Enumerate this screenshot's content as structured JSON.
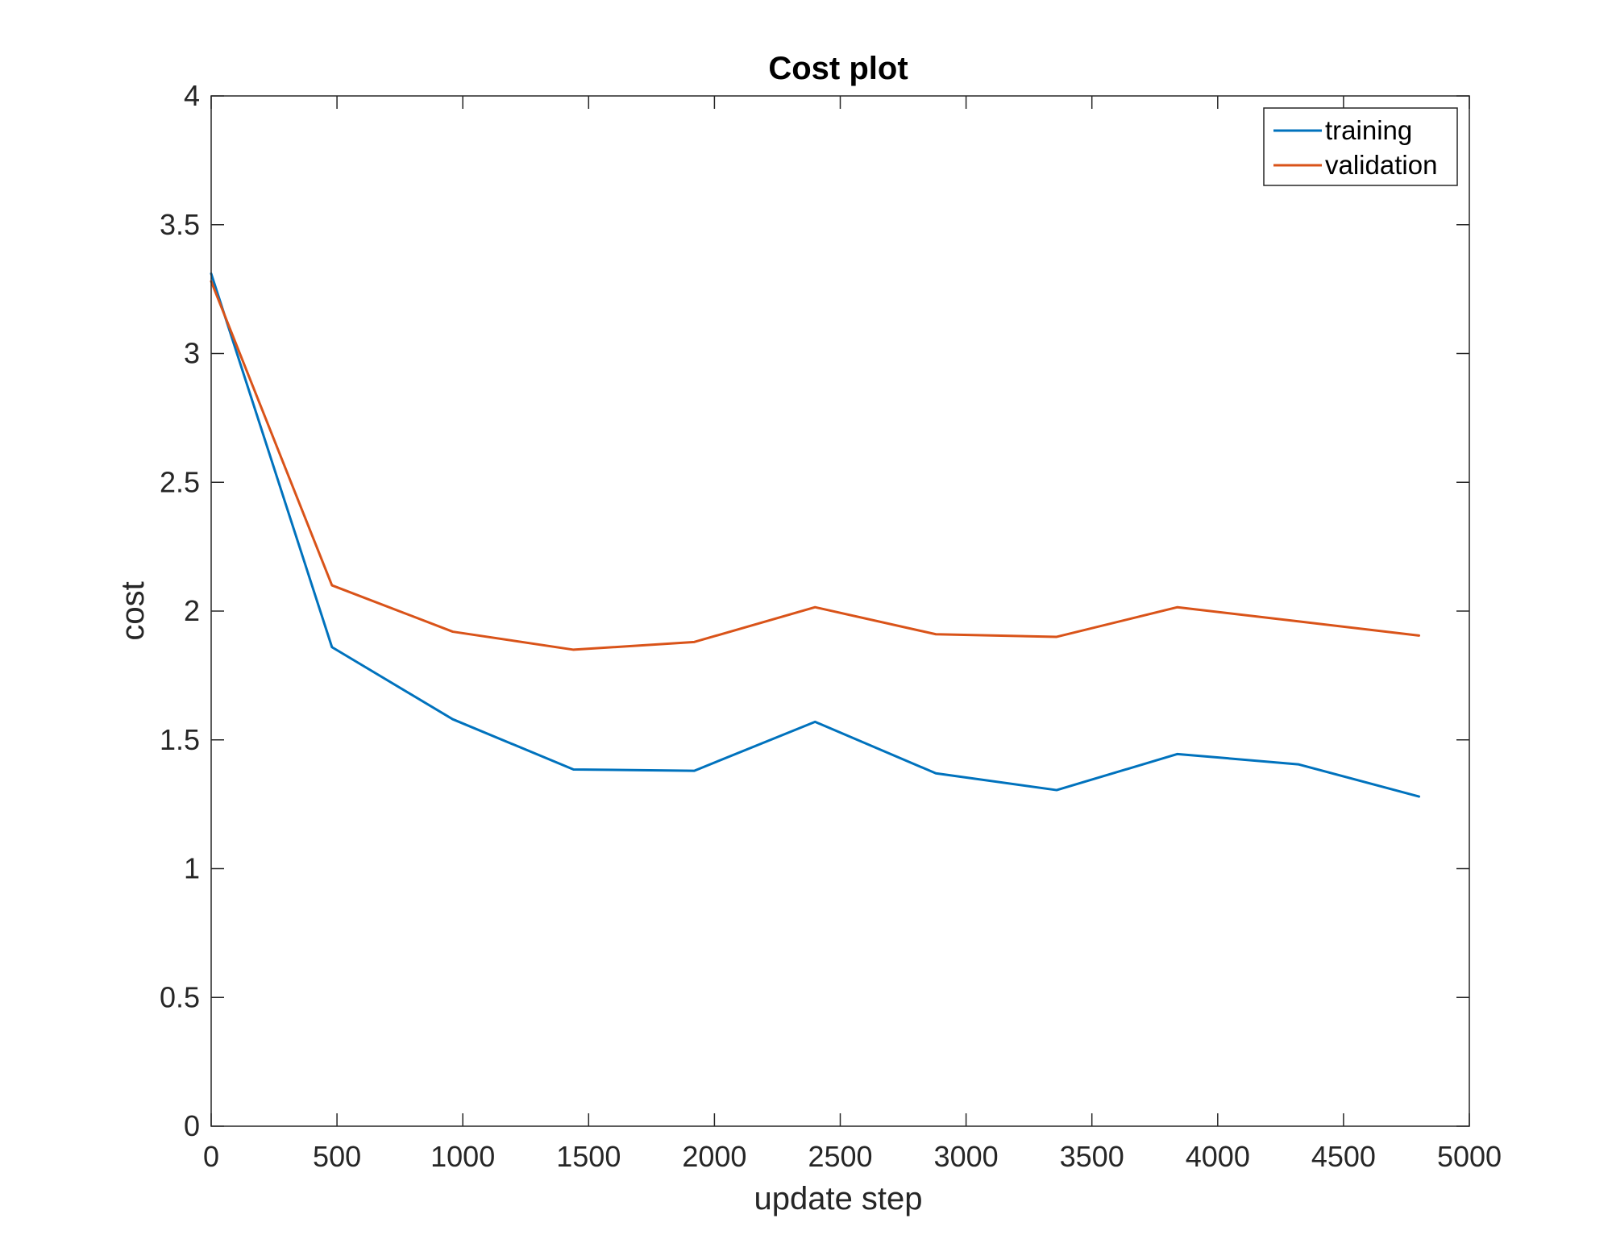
{
  "chart_data": {
    "type": "line",
    "title": "Cost plot",
    "xlabel": "update step",
    "ylabel": "cost",
    "xlim": [
      0,
      5000
    ],
    "ylim": [
      0,
      4
    ],
    "x_ticks": [
      0,
      500,
      1000,
      1500,
      2000,
      2500,
      3000,
      3500,
      4000,
      4500,
      5000
    ],
    "x_tick_labels": [
      "0",
      "500",
      "1000",
      "1500",
      "2000",
      "2500",
      "3000",
      "3500",
      "4000",
      "4500",
      "5000"
    ],
    "y_ticks": [
      0,
      0.5,
      1,
      1.5,
      2,
      2.5,
      3,
      3.5,
      4
    ],
    "y_tick_labels": [
      "0",
      "0.5",
      "1",
      "1.5",
      "2",
      "2.5",
      "3",
      "3.5",
      "4"
    ],
    "grid": false,
    "legend_position": "top-right",
    "x": [
      0,
      480,
      960,
      1440,
      1920,
      2400,
      2880,
      3360,
      3840,
      4320,
      4800
    ],
    "series": [
      {
        "name": "training",
        "color": "#0072BD",
        "values": [
          3.31,
          1.86,
          1.58,
          1.385,
          1.38,
          1.57,
          1.37,
          1.305,
          1.445,
          1.405,
          1.28
        ]
      },
      {
        "name": "validation",
        "color": "#D95319",
        "values": [
          3.28,
          2.1,
          1.92,
          1.85,
          1.88,
          2.015,
          1.91,
          1.9,
          2.015,
          1.96,
          1.905
        ]
      }
    ]
  }
}
